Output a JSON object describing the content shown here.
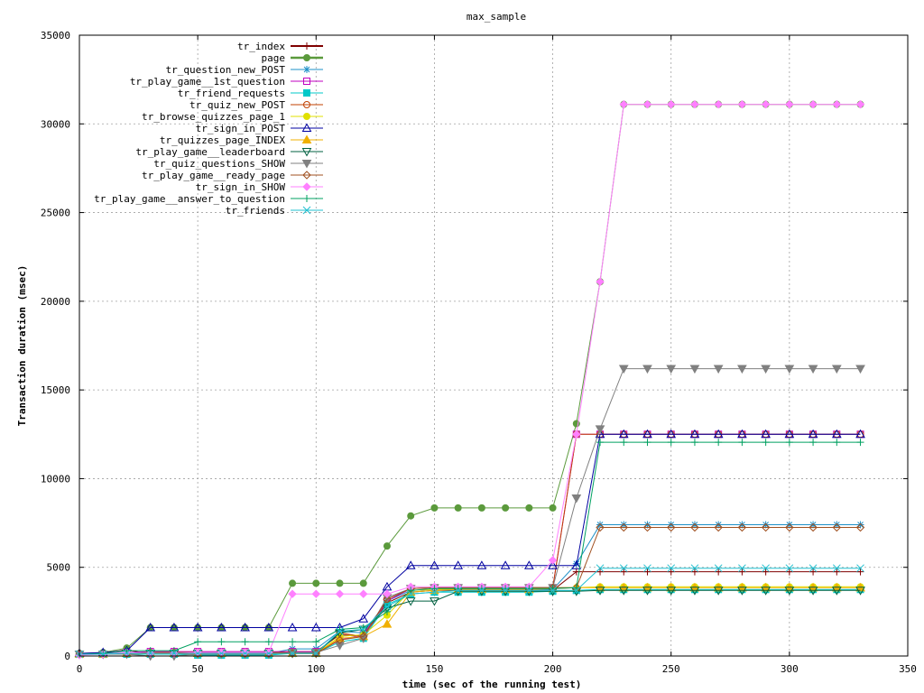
{
  "chart_data": {
    "type": "line",
    "title": "max_sample",
    "xlabel": "time (sec of the running test)",
    "ylabel": "Transaction duration (msec)",
    "xlim": [
      0,
      350
    ],
    "ylim": [
      0,
      35000
    ],
    "x_ticks": [
      0,
      50,
      100,
      150,
      200,
      250,
      300,
      350
    ],
    "y_ticks": [
      0,
      5000,
      10000,
      15000,
      20000,
      25000,
      30000,
      35000
    ],
    "grid": true,
    "legend_position": "top-left",
    "x": [
      0,
      10,
      20,
      30,
      40,
      50,
      60,
      70,
      80,
      90,
      100,
      110,
      120,
      130,
      140,
      150,
      160,
      170,
      180,
      190,
      200,
      210,
      220,
      230,
      240,
      250,
      260,
      270,
      280,
      290,
      300,
      310,
      320,
      330
    ],
    "series": [
      {
        "name": "tr_index",
        "color": "#800000",
        "marker": "plus",
        "width": 2,
        "values": [
          150,
          150,
          350,
          100,
          100,
          150,
          150,
          150,
          150,
          250,
          250,
          1200,
          1100,
          3000,
          3600,
          3700,
          3700,
          3700,
          3700,
          3700,
          3700,
          4750,
          4750,
          4750,
          4750,
          4750,
          4750,
          4750,
          4750,
          4750,
          4750,
          4750,
          4750,
          4750
        ]
      },
      {
        "name": "page",
        "color": "#5b9a3c",
        "marker": "filled-circle",
        "width": 2.5,
        "values": [
          150,
          200,
          450,
          1600,
          1600,
          1600,
          1600,
          1600,
          1600,
          4100,
          4100,
          4100,
          4100,
          6200,
          7900,
          8350,
          8350,
          8350,
          8350,
          8350,
          8350,
          13100,
          21100,
          31100,
          31100,
          31100,
          31100,
          31100,
          31100,
          31100,
          31100,
          31100,
          31100,
          31100
        ]
      },
      {
        "name": "tr_question_new_POST",
        "color": "#1e90c8",
        "marker": "asterisk",
        "width": 1,
        "values": [
          150,
          150,
          200,
          150,
          150,
          150,
          150,
          150,
          150,
          400,
          400,
          1400,
          1300,
          3100,
          3700,
          3750,
          3750,
          3750,
          3750,
          3750,
          3750,
          5200,
          7400,
          7400,
          7400,
          7400,
          7400,
          7400,
          7400,
          7400,
          7400,
          7400,
          7400,
          7400
        ]
      },
      {
        "name": "tr_play_game__1st_question",
        "color": "#c000c0",
        "marker": "open-square",
        "width": 1,
        "values": [
          100,
          100,
          200,
          250,
          250,
          250,
          250,
          250,
          250,
          250,
          250,
          900,
          1200,
          3100,
          3800,
          3850,
          3850,
          3850,
          3850,
          3850,
          3850,
          12500,
          12500,
          12500,
          12500,
          12500,
          12500,
          12500,
          12500,
          12500,
          12500,
          12500,
          12500,
          12500
        ]
      },
      {
        "name": "tr_friend_requests",
        "color": "#00c8c8",
        "marker": "filled-square",
        "width": 1,
        "values": [
          100,
          100,
          100,
          100,
          100,
          50,
          50,
          50,
          50,
          150,
          150,
          800,
          1000,
          2900,
          3500,
          3600,
          3600,
          3600,
          3600,
          3600,
          3650,
          3700,
          3750,
          3750,
          3750,
          3750,
          3750,
          3750,
          3750,
          3750,
          3750,
          3750,
          3750,
          3750
        ]
      },
      {
        "name": "tr_quiz_new_POST",
        "color": "#c04000",
        "marker": "open-circle",
        "width": 1,
        "values": [
          100,
          100,
          150,
          200,
          200,
          200,
          200,
          200,
          200,
          200,
          200,
          1300,
          1100,
          3200,
          3800,
          3850,
          3850,
          3850,
          3850,
          3850,
          3850,
          12500,
          12500,
          12500,
          12500,
          12500,
          12500,
          12500,
          12500,
          12500,
          12500,
          12500,
          12500,
          12500
        ]
      },
      {
        "name": "tr_browse_quizzes_page_1",
        "color": "#e0e000",
        "marker": "filled-circle",
        "width": 1,
        "values": [
          100,
          100,
          150,
          150,
          150,
          150,
          150,
          150,
          150,
          150,
          150,
          1100,
          1200,
          2300,
          3700,
          3750,
          3800,
          3800,
          3800,
          3800,
          3850,
          3850,
          3900,
          3900,
          3900,
          3900,
          3900,
          3900,
          3900,
          3900,
          3900,
          3900,
          3900,
          3900
        ]
      },
      {
        "name": "tr_sign_in_POST",
        "color": "#0000a0",
        "marker": "open-triangle",
        "width": 1,
        "values": [
          150,
          200,
          300,
          1600,
          1600,
          1600,
          1600,
          1600,
          1600,
          1600,
          1600,
          1600,
          2100,
          3900,
          5100,
          5100,
          5100,
          5100,
          5100,
          5100,
          5100,
          5100,
          12500,
          12500,
          12500,
          12500,
          12500,
          12500,
          12500,
          12500,
          12500,
          12500,
          12500,
          12500
        ]
      },
      {
        "name": "tr_quizzes_page_INDEX",
        "color": "#f0b000",
        "marker": "filled-triangle",
        "width": 1,
        "values": [
          100,
          100,
          150,
          150,
          150,
          150,
          150,
          150,
          150,
          150,
          150,
          1000,
          1100,
          1800,
          3600,
          3700,
          3750,
          3750,
          3750,
          3750,
          3800,
          3850,
          3850,
          3850,
          3850,
          3850,
          3850,
          3850,
          3850,
          3850,
          3850,
          3850,
          3850,
          3850
        ]
      },
      {
        "name": "tr_play_game__leaderboard",
        "color": "#006040",
        "marker": "open-triangle-down",
        "width": 1,
        "values": [
          100,
          100,
          150,
          150,
          150,
          150,
          150,
          150,
          150,
          150,
          150,
          1300,
          1500,
          2700,
          3100,
          3100,
          3650,
          3650,
          3650,
          3650,
          3650,
          3650,
          3700,
          3700,
          3700,
          3700,
          3700,
          3700,
          3700,
          3700,
          3700,
          3700,
          3700,
          3700
        ]
      },
      {
        "name": "tr_quiz_questions_SHOW",
        "color": "#808080",
        "marker": "filled-triangle-down",
        "width": 1,
        "values": [
          100,
          100,
          100,
          0,
          0,
          100,
          100,
          100,
          100,
          200,
          200,
          600,
          1000,
          3300,
          3800,
          3850,
          3850,
          3850,
          3850,
          3850,
          3850,
          8900,
          12800,
          16200,
          16200,
          16200,
          16200,
          16200,
          16200,
          16200,
          16200,
          16200,
          16200,
          16200
        ]
      },
      {
        "name": "tr_play_game__ready_page",
        "color": "#a05020",
        "marker": "open-diamond",
        "width": 1,
        "values": [
          100,
          100,
          150,
          150,
          150,
          150,
          150,
          150,
          150,
          150,
          150,
          900,
          1100,
          3200,
          3800,
          3850,
          3850,
          3850,
          3850,
          3850,
          3850,
          3850,
          7250,
          7250,
          7250,
          7250,
          7250,
          7250,
          7250,
          7250,
          7250,
          7250,
          7250,
          7250
        ]
      },
      {
        "name": "tr_sign_in_SHOW",
        "color": "#ff80ff",
        "marker": "filled-diamond",
        "width": 1,
        "values": [
          50,
          100,
          200,
          150,
          150,
          200,
          200,
          200,
          200,
          3500,
          3500,
          3500,
          3500,
          3500,
          3900,
          3900,
          3900,
          3900,
          3900,
          3900,
          5400,
          12500,
          21100,
          31100,
          31100,
          31100,
          31100,
          31100,
          31100,
          31100,
          31100,
          31100,
          31100,
          31100
        ]
      },
      {
        "name": "tr_play_game__answer_to_question",
        "color": "#00a060",
        "marker": "plus",
        "width": 1,
        "values": [
          100,
          150,
          300,
          300,
          300,
          800,
          800,
          800,
          800,
          800,
          800,
          1500,
          1600,
          2500,
          3700,
          3800,
          3800,
          3800,
          3800,
          3800,
          3800,
          3850,
          12050,
          12050,
          12050,
          12050,
          12050,
          12050,
          12050,
          12050,
          12050,
          12050,
          12050,
          12050
        ]
      },
      {
        "name": "tr_friends",
        "color": "#20c0d0",
        "marker": "cross",
        "width": 1,
        "values": [
          100,
          100,
          150,
          150,
          150,
          150,
          150,
          150,
          150,
          150,
          150,
          1400,
          1500,
          2800,
          3500,
          3600,
          3700,
          3700,
          3700,
          3700,
          3700,
          3700,
          4950,
          4950,
          4950,
          4950,
          4950,
          4950,
          4950,
          4950,
          4950,
          4950,
          4950,
          4950
        ]
      }
    ]
  }
}
